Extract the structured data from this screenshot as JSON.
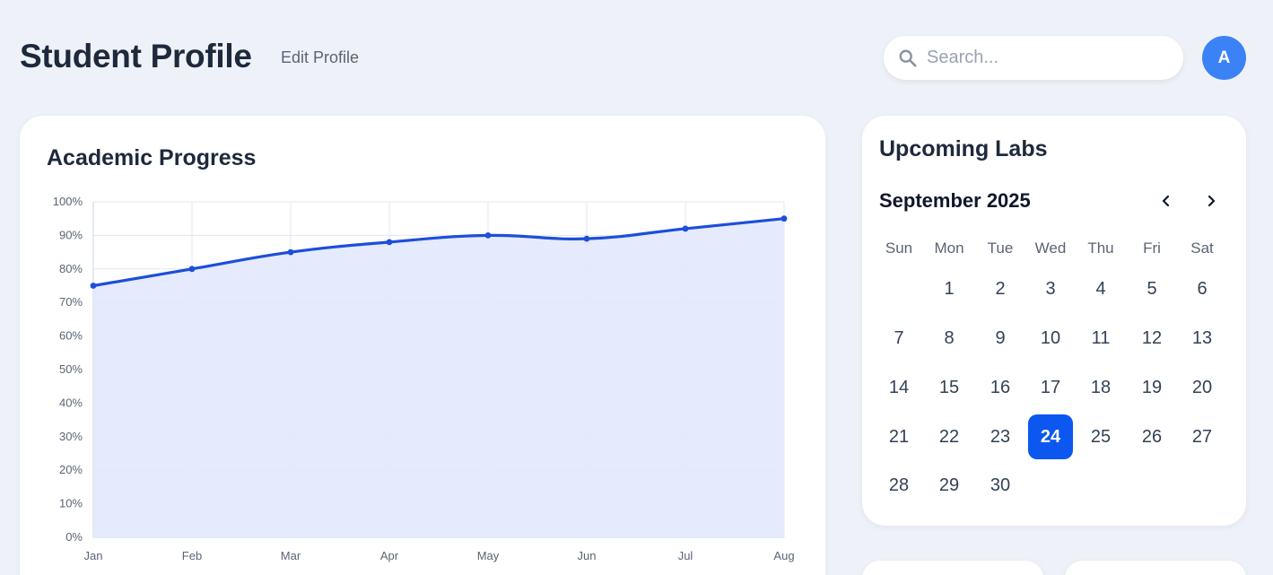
{
  "header": {
    "title": "Student Profile",
    "edit_label": "Edit Profile",
    "search_placeholder": "Search...",
    "avatar_initial": "A"
  },
  "progress": {
    "title": "Academic Progress"
  },
  "chart_data": {
    "type": "area",
    "title": "",
    "xlabel": "",
    "ylabel": "",
    "categories": [
      "Jan",
      "Feb",
      "Mar",
      "Apr",
      "May",
      "Jun",
      "Jul",
      "Aug"
    ],
    "values": [
      75,
      80,
      85,
      88,
      90,
      89,
      92,
      95
    ],
    "ylim": [
      0,
      100
    ],
    "yticks": [
      "0%",
      "10%",
      "20%",
      "30%",
      "40%",
      "50%",
      "60%",
      "70%",
      "80%",
      "90%",
      "100%"
    ],
    "grid": true,
    "legend": "none",
    "colors": {
      "line": "#1d4ed8",
      "fill": "#e2e8fc",
      "grid": "#e3e7ef"
    }
  },
  "labs": {
    "title": "Upcoming Labs",
    "month": "September 2025",
    "weekdays": [
      "Sun",
      "Mon",
      "Tue",
      "Wed",
      "Thu",
      "Fri",
      "Sat"
    ],
    "first_weekday": 1,
    "days_in_month": 30,
    "selected_day": 24,
    "prev_icon": "chevron-left-icon",
    "next_icon": "chevron-right-icon"
  },
  "theme": {
    "accent": "#0b57f0",
    "avatar": "#3b82f6",
    "background": "#eef2f8"
  }
}
